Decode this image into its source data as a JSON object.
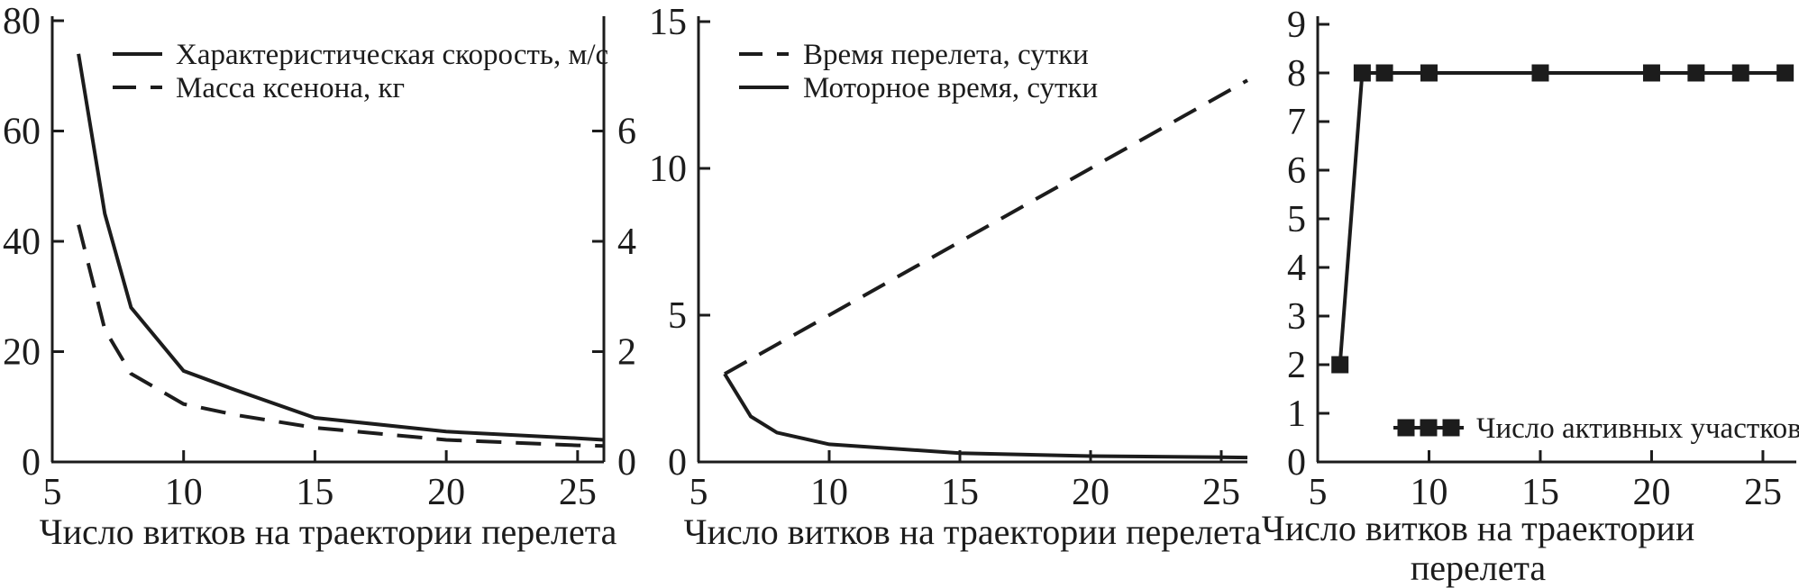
{
  "figure": {
    "background": "#ffffff",
    "ink_color": "#1c1c1c"
  },
  "chart_data": [
    {
      "type": "line",
      "title": "",
      "xlabel": "Число витков на траектории перелета",
      "xlim": [
        5,
        26
      ],
      "x_ticks": [
        5,
        10,
        15,
        20,
        25
      ],
      "y_left_lim": [
        0,
        80
      ],
      "y_left_ticks": [
        0,
        20,
        40,
        60,
        80
      ],
      "y_right_lim": [
        0,
        8
      ],
      "y_right_ticks": [
        0,
        2,
        4,
        6
      ],
      "grid": false,
      "legend_position": "top-left-inside",
      "series": [
        {
          "name": "Характеристическая скорость, м/с",
          "line": "solid",
          "axis": "left",
          "marker": "none",
          "x": [
            6,
            7,
            8,
            10,
            12,
            15,
            20,
            25,
            26
          ],
          "y": [
            74,
            45,
            28,
            16.5,
            13,
            8,
            5.5,
            4.3,
            4
          ]
        },
        {
          "name": "Масса ксенона, кг",
          "line": "dashed",
          "axis": "right",
          "marker": "none",
          "x": [
            6,
            7,
            8,
            10,
            12,
            15,
            20,
            25,
            26
          ],
          "y": [
            4.3,
            2.4,
            1.6,
            1.05,
            0.85,
            0.62,
            0.4,
            0.3,
            0.29
          ]
        }
      ]
    },
    {
      "type": "line",
      "title": "",
      "xlabel": "Число витков на траектории перелета",
      "xlim": [
        5,
        26
      ],
      "x_ticks": [
        5,
        10,
        15,
        20,
        25
      ],
      "y_left_lim": [
        0,
        15
      ],
      "y_left_ticks": [
        0,
        5,
        10,
        15
      ],
      "grid": false,
      "legend_position": "top-left-inside",
      "series": [
        {
          "name": "Время перелета, сутки",
          "line": "dashed",
          "axis": "left",
          "marker": "none",
          "x": [
            6,
            10,
            15,
            20,
            26
          ],
          "y": [
            3,
            5,
            7.5,
            10,
            13
          ]
        },
        {
          "name": "Моторное время, сутки",
          "line": "solid",
          "axis": "left",
          "marker": "none",
          "x": [
            6,
            7,
            8,
            10,
            15,
            20,
            25,
            26
          ],
          "y": [
            3,
            1.55,
            1.0,
            0.6,
            0.3,
            0.2,
            0.16,
            0.15
          ]
        }
      ]
    },
    {
      "type": "line",
      "title": "",
      "xlabel_lines": [
        "Число витков на траектории",
        "перелета"
      ],
      "xlim": [
        5,
        26.5
      ],
      "x_ticks": [
        5,
        10,
        15,
        20,
        25
      ],
      "y_left_lim": [
        0,
        9
      ],
      "y_left_ticks": [
        0,
        1,
        2,
        3,
        4,
        5,
        6,
        7,
        8,
        9
      ],
      "grid": false,
      "legend_position": "inside-bottom",
      "series": [
        {
          "name": "Число активных участков",
          "line": "solid",
          "axis": "left",
          "marker": "square",
          "x": [
            6,
            7,
            8,
            10,
            15,
            20,
            22,
            24,
            26
          ],
          "y": [
            2,
            8,
            8,
            8,
            8,
            8,
            8,
            8,
            8
          ]
        }
      ]
    }
  ]
}
